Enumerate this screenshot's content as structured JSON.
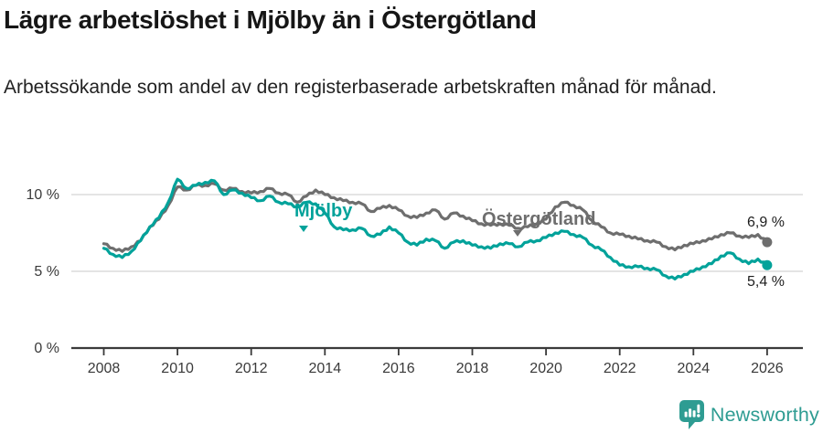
{
  "header": {
    "title": "Lägre arbetslöshet i Mjölby än i Östergötland",
    "subtitle": "Arbetssökande som andel av den registerbaserade arbetskraften månad för månad."
  },
  "chart_data": {
    "type": "line",
    "unit": "%",
    "x_axis": "year",
    "x_start": 2008,
    "x_interval_years": 0.25,
    "x_end": 2026,
    "points_per_series": 73,
    "series": [
      {
        "name": "Östergötland",
        "color": "#6E6E6E",
        "end_label": "6,9 %",
        "end_value": 6.9,
        "values": [
          6.8,
          6.5,
          6.3,
          6.6,
          7.0,
          7.9,
          8.4,
          9.3,
          10.5,
          10.3,
          10.6,
          10.6,
          10.7,
          10.3,
          10.4,
          10.2,
          10.1,
          10.2,
          10.4,
          10.1,
          10.0,
          9.5,
          9.9,
          10.3,
          10.0,
          9.8,
          9.6,
          9.5,
          9.4,
          8.9,
          9.1,
          9.3,
          9.0,
          8.6,
          8.5,
          8.8,
          9.0,
          8.4,
          8.8,
          8.6,
          8.3,
          8.1,
          8.0,
          8.1,
          8.0,
          7.8,
          7.9,
          8.1,
          8.4,
          9.2,
          9.5,
          9.3,
          9.0,
          8.3,
          7.9,
          7.5,
          7.4,
          7.3,
          7.1,
          7.0,
          6.9,
          6.6,
          6.4,
          6.7,
          6.8,
          7.0,
          7.1,
          7.4,
          7.5,
          7.3,
          7.2,
          7.4,
          6.9
        ]
      },
      {
        "name": "Mjölby",
        "color": "#00A29A",
        "end_label": "5,4 %",
        "end_value": 5.4,
        "values": [
          6.5,
          6.1,
          5.9,
          6.3,
          7.0,
          7.9,
          8.5,
          9.5,
          11.0,
          10.4,
          10.6,
          10.8,
          10.9,
          10.0,
          10.3,
          10.1,
          9.8,
          9.6,
          9.9,
          9.5,
          9.4,
          9.2,
          9.5,
          9.4,
          8.8,
          7.9,
          7.7,
          7.7,
          7.8,
          7.3,
          7.4,
          7.9,
          7.5,
          6.9,
          6.7,
          7.1,
          7.0,
          6.5,
          6.9,
          7.0,
          6.7,
          6.6,
          6.5,
          6.8,
          6.8,
          6.6,
          6.9,
          7.0,
          7.2,
          7.5,
          7.6,
          7.4,
          7.2,
          6.7,
          6.4,
          5.9,
          5.4,
          5.3,
          5.3,
          5.2,
          5.1,
          4.7,
          4.5,
          4.8,
          5.0,
          5.3,
          5.5,
          6.0,
          6.2,
          5.8,
          5.5,
          5.8,
          5.4
        ]
      }
    ],
    "x_ticks": [
      "2008",
      "2010",
      "2012",
      "2014",
      "2016",
      "2018",
      "2020",
      "2022",
      "2024",
      "2026"
    ],
    "y_ticks": [
      {
        "value": 0,
        "label": "0 %"
      },
      {
        "value": 5,
        "label": "5 %"
      },
      {
        "value": 10,
        "label": "10 %"
      }
    ],
    "ylim": [
      0,
      11.9
    ],
    "grid": "horizontal-light",
    "legend": "inline-labels-on-lines"
  },
  "footer": {
    "brand": "Newsworthy"
  },
  "colors": {
    "mjolby": "#00A29A",
    "ostergotland": "#6E6E6E",
    "grid": "#DCDCDC",
    "axis": "#3A3A3A",
    "text": "#222222",
    "brand_teal": "#2E9C92"
  }
}
